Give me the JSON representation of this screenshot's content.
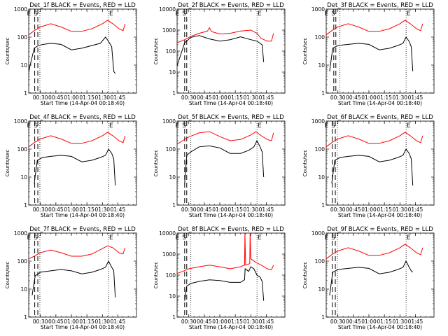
{
  "colors": {
    "events": "#000000",
    "lld": "#ff0000",
    "axis": "#000000"
  },
  "common": {
    "xlabel": "Start Time (14-Apr-04 00:18:40)",
    "ylabel": "Counts/sec",
    "xticks": [
      "00:30",
      "00:45",
      "01:00",
      "01:15",
      "01:30",
      "01:45"
    ],
    "marker_labels": [
      "E",
      "S",
      "E"
    ]
  },
  "chart_data": [
    {
      "type": "line",
      "title": "Det_1f BLACK = Events, RED = LLD",
      "ylim": [
        1,
        1000
      ],
      "yticks": [
        "1",
        "10",
        "100",
        "1000"
      ],
      "xlabel": "Start Time (14-Apr-04 00:18:40)",
      "ylabel": "Counts/sec",
      "x_range_min": [
        18.67,
        123
      ],
      "series": [
        {
          "name": "Events",
          "x": [
            18.7,
            24,
            28,
            33,
            40,
            50,
            60,
            70,
            80,
            88,
            93,
            96,
            99,
            101,
            102.5
          ],
          "y": [
            6,
            40,
            50,
            55,
            60,
            55,
            35,
            40,
            50,
            60,
            100,
            70,
            45,
            6,
            5
          ]
        },
        {
          "name": "LLD",
          "x": [
            18.7,
            24,
            30,
            40,
            50,
            60,
            70,
            80,
            90,
            95,
            100,
            106,
            110,
            112
          ],
          "y": [
            120,
            170,
            230,
            300,
            230,
            160,
            160,
            200,
            300,
            400,
            300,
            200,
            170,
            300
          ]
        }
      ],
      "vlines_dashed": [
        24.5,
        27.5
      ],
      "vlines_dotted": [
        29.5,
        96
      ]
    },
    {
      "type": "line",
      "title": "Det_2f BLACK = Events, RED = LLD",
      "ylim": [
        1,
        10000
      ],
      "yticks": [
        "1",
        "10",
        "100",
        "1000",
        "10000"
      ],
      "xlabel": "Start Time (14-Apr-04 00:18:40)",
      "ylabel": "Counts/sec",
      "series": [
        {
          "name": "Events",
          "x": [
            18.7,
            26,
            32,
            40,
            50,
            60,
            70,
            80,
            90,
            96,
            101,
            102.5
          ],
          "y": [
            20,
            250,
            450,
            550,
            380,
            300,
            350,
            480,
            350,
            300,
            200,
            30
          ]
        },
        {
          "name": "LLD",
          "x": [
            18.7,
            26,
            32,
            40,
            48,
            50,
            52,
            60,
            70,
            80,
            90,
            96,
            100,
            106,
            110,
            112
          ],
          "y": [
            250,
            350,
            500,
            700,
            900,
            1300,
            850,
            650,
            700,
            900,
            1000,
            700,
            400,
            300,
            300,
            700
          ]
        }
      ],
      "vlines_dashed": [
        26,
        28
      ],
      "vlines_dotted": [
        32,
        96
      ]
    },
    {
      "type": "line",
      "title": "Det_3f BLACK = Events, RED = LLD",
      "ylim": [
        1,
        1000
      ],
      "yticks": [
        "1",
        "10",
        "100",
        "1000"
      ],
      "xlabel": "Start Time (14-Apr-04 00:18:40)",
      "ylabel": "Counts/sec",
      "series": [
        {
          "name": "Events",
          "x": [
            22,
            25,
            30,
            40,
            50,
            60,
            70,
            80,
            88,
            93,
            96,
            99,
            101,
            102.5
          ],
          "y": [
            6,
            40,
            50,
            55,
            60,
            55,
            35,
            40,
            50,
            60,
            100,
            70,
            45,
            6
          ]
        },
        {
          "name": "LLD",
          "x": [
            18.7,
            24,
            30,
            40,
            50,
            60,
            70,
            80,
            90,
            95,
            100,
            106,
            110,
            112
          ],
          "y": [
            120,
            170,
            230,
            300,
            230,
            160,
            160,
            200,
            300,
            400,
            300,
            200,
            170,
            300
          ]
        }
      ],
      "vlines_dashed": [
        26,
        28
      ],
      "vlines_dotted": [
        32,
        96
      ]
    },
    {
      "type": "line",
      "title": "Det_4f BLACK = Events, RED = LLD",
      "ylim": [
        1,
        1000
      ],
      "yticks": [
        "1",
        "10",
        "100",
        "1000"
      ],
      "xlabel": "Start Time (14-Apr-04 00:18:40)",
      "ylabel": "Counts/sec",
      "series": [
        {
          "name": "Events",
          "x": [
            24,
            27,
            32,
            40,
            50,
            60,
            70,
            80,
            88,
            93,
            96,
            99,
            101,
            102.5
          ],
          "y": [
            6,
            40,
            50,
            55,
            60,
            55,
            35,
            40,
            50,
            60,
            100,
            70,
            45,
            5
          ]
        },
        {
          "name": "LLD",
          "x": [
            18.7,
            24,
            30,
            40,
            50,
            60,
            70,
            80,
            90,
            95,
            100,
            106,
            110,
            112
          ],
          "y": [
            120,
            170,
            230,
            300,
            230,
            160,
            160,
            200,
            300,
            400,
            300,
            200,
            170,
            300
          ]
        }
      ],
      "vlines_dashed": [
        24.5,
        27.5
      ],
      "vlines_dotted": [
        29.5,
        96
      ]
    },
    {
      "type": "line",
      "title": "Det_5f BLACK = Events, RED = LLD",
      "ylim": [
        1,
        1000
      ],
      "yticks": [
        "1",
        "10",
        "100",
        "1000"
      ],
      "xlabel": "Start Time (14-Apr-04 00:18:40)",
      "ylabel": "Counts/sec",
      "series": [
        {
          "name": "Events",
          "x": [
            26,
            28,
            32,
            40,
            50,
            60,
            70,
            80,
            88,
            93,
            96,
            99,
            101,
            102.5
          ],
          "y": [
            6,
            60,
            80,
            120,
            130,
            110,
            70,
            70,
            90,
            120,
            200,
            120,
            80,
            10
          ]
        },
        {
          "name": "LLD",
          "x": [
            18.7,
            24,
            30,
            40,
            50,
            60,
            70,
            80,
            90,
            95,
            100,
            106,
            110,
            112
          ],
          "y": [
            150,
            200,
            270,
            380,
            420,
            280,
            200,
            220,
            320,
            420,
            300,
            220,
            200,
            380
          ]
        }
      ],
      "vlines_dashed": [
        26,
        28
      ],
      "vlines_dotted": [
        32,
        96
      ]
    },
    {
      "type": "line",
      "title": "Det_6f BLACK = Events, RED = LLD",
      "ylim": [
        1,
        1000
      ],
      "yticks": [
        "1",
        "10",
        "100",
        "1000"
      ],
      "xlabel": "Start Time (14-Apr-04 00:18:40)",
      "ylabel": "Counts/sec",
      "series": [
        {
          "name": "Events",
          "x": [
            24,
            27,
            32,
            40,
            50,
            60,
            70,
            80,
            88,
            93,
            96,
            99,
            101,
            102.5
          ],
          "y": [
            6,
            40,
            50,
            55,
            60,
            55,
            35,
            40,
            50,
            60,
            100,
            70,
            45,
            5
          ]
        },
        {
          "name": "LLD",
          "x": [
            18.7,
            24,
            30,
            40,
            50,
            60,
            70,
            80,
            90,
            95,
            100,
            106,
            110,
            112
          ],
          "y": [
            120,
            170,
            230,
            300,
            230,
            160,
            160,
            200,
            300,
            400,
            300,
            200,
            170,
            300
          ]
        }
      ],
      "vlines_dashed": [
        24.5,
        27.5
      ],
      "vlines_dotted": [
        29.5,
        96
      ]
    },
    {
      "type": "line",
      "title": "Det_7f BLACK = Events, RED = LLD",
      "ylim": [
        1,
        1000
      ],
      "yticks": [
        "1",
        "10",
        "100",
        "1000"
      ],
      "xlabel": "Start Time (14-Apr-04 00:18:40)",
      "ylabel": "Counts/sec",
      "series": [
        {
          "name": "Events",
          "x": [
            22,
            25,
            30,
            40,
            50,
            60,
            70,
            80,
            88,
            93,
            96,
            99,
            101,
            102.5
          ],
          "y": [
            6,
            30,
            40,
            45,
            50,
            45,
            35,
            40,
            50,
            60,
            100,
            60,
            45,
            5
          ]
        },
        {
          "name": "LLD",
          "x": [
            18.7,
            24,
            30,
            40,
            50,
            60,
            70,
            80,
            90,
            95,
            100,
            106,
            110,
            112
          ],
          "y": [
            120,
            150,
            200,
            250,
            200,
            150,
            150,
            180,
            280,
            350,
            300,
            200,
            180,
            300
          ]
        }
      ],
      "vlines_dashed": [
        24.5,
        27.5
      ],
      "vlines_dotted": [
        29.5,
        96
      ]
    },
    {
      "type": "line",
      "title": "Det_8f BLACK = Events, RED = LLD",
      "ylim": [
        1,
        10000
      ],
      "yticks": [
        "1",
        "10",
        "100",
        "1000",
        "10000"
      ],
      "xlabel": "Start Time (14-Apr-04 00:18:40)",
      "ylabel": "Counts/sec",
      "series": [
        {
          "name": "Events",
          "x": [
            26,
            28,
            32,
            40,
            50,
            60,
            70,
            80,
            84,
            84.5,
            88,
            90,
            93,
            96,
            99,
            101,
            102.5
          ],
          "y": [
            6,
            30,
            40,
            50,
            60,
            55,
            45,
            45,
            60,
            200,
            150,
            250,
            200,
            100,
            80,
            50,
            6
          ]
        },
        {
          "name": "LLD",
          "x": [
            18.7,
            24,
            30,
            40,
            50,
            60,
            70,
            80,
            84,
            84.3,
            85,
            89,
            89.3,
            90,
            95,
            100,
            106,
            110,
            112
          ],
          "y": [
            120,
            150,
            200,
            250,
            300,
            250,
            200,
            250,
            300,
            10000,
            300,
            350,
            10000,
            600,
            400,
            300,
            200,
            180,
            300
          ]
        }
      ],
      "vlines_dashed": [
        26,
        28
      ],
      "vlines_dotted": [
        32,
        96
      ]
    },
    {
      "type": "line",
      "title": "Det_9f BLACK = Events, RED = LLD",
      "ylim": [
        1,
        1000
      ],
      "yticks": [
        "1",
        "10",
        "100",
        "1000"
      ],
      "xlabel": "Start Time (14-Apr-04 00:18:40)",
      "ylabel": "Counts/sec",
      "series": [
        {
          "name": "Events",
          "x": [
            22,
            25,
            30,
            40,
            50,
            60,
            70,
            80,
            88,
            93,
            96,
            99,
            101,
            102.5
          ],
          "y": [
            6,
            40,
            50,
            55,
            60,
            55,
            35,
            40,
            50,
            60,
            100,
            60,
            45,
            40
          ]
        },
        {
          "name": "LLD",
          "x": [
            18.7,
            24,
            30,
            40,
            50,
            60,
            70,
            80,
            90,
            95,
            100,
            106,
            110,
            112
          ],
          "y": [
            120,
            170,
            230,
            300,
            230,
            160,
            160,
            200,
            300,
            400,
            300,
            200,
            170,
            300
          ]
        }
      ],
      "vlines_dashed": [
        24.5,
        27.5
      ],
      "vlines_dotted": [
        29.5,
        96
      ]
    }
  ]
}
